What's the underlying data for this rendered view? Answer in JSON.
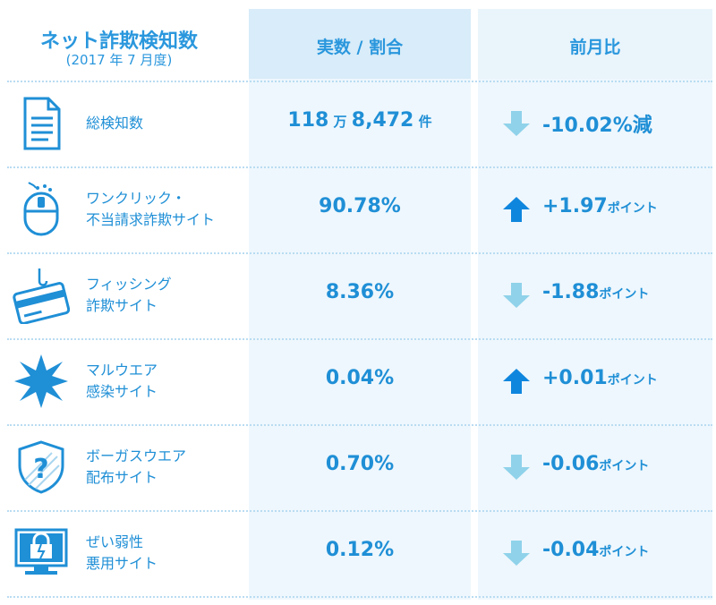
{
  "header": {
    "title": "ネット詐欺検知数",
    "subtitle": "(2017 年 7 月度)",
    "col_value": "実数 / 割合",
    "col_change": "前月比"
  },
  "colors": {
    "text": "#1f8fd6",
    "arrow_up": "#0f86de",
    "arrow_down": "#8fd2ea",
    "col_bg": "#eef7fd"
  },
  "chart_data": {
    "type": "table",
    "title": "ネット詐欺検知数",
    "subtitle": "(2017 年 7 月度)",
    "columns": [
      "実数 / 割合",
      "前月比"
    ],
    "rows": [
      {
        "icon": "document-icon",
        "label_lines": [
          "総検知数"
        ],
        "value_main": "118",
        "value_unit1": "万",
        "value_main2": "8,472",
        "value_unit2": "件",
        "change_value": "-10.02%",
        "change_unit": "減",
        "direction": "down"
      },
      {
        "icon": "mouse-icon",
        "label_lines": [
          "ワンクリック・",
          "不当請求詐欺サイト"
        ],
        "value_main": "90.78%",
        "change_value": "+1.97",
        "change_unit": "ポイント",
        "direction": "up"
      },
      {
        "icon": "credit-card-hook-icon",
        "label_lines": [
          "フィッシング",
          "詐欺サイト"
        ],
        "value_main": "8.36%",
        "change_value": "-1.88",
        "change_unit": "ポイント",
        "direction": "down"
      },
      {
        "icon": "malware-burst-icon",
        "label_lines": [
          "マルウエア",
          "感染サイト"
        ],
        "value_main": "0.04%",
        "change_value": "+0.01",
        "change_unit": "ポイント",
        "direction": "up"
      },
      {
        "icon": "shield-question-icon",
        "label_lines": [
          "ボーガスウエア",
          "配布サイト"
        ],
        "value_main": "0.70%",
        "change_value": "-0.06",
        "change_unit": "ポイント",
        "direction": "down"
      },
      {
        "icon": "broken-lock-monitor-icon",
        "label_lines": [
          "ぜい弱性",
          "悪用サイト"
        ],
        "value_main": "0.12%",
        "change_value": "-0.04",
        "change_unit": "ポイント",
        "direction": "down"
      }
    ]
  }
}
